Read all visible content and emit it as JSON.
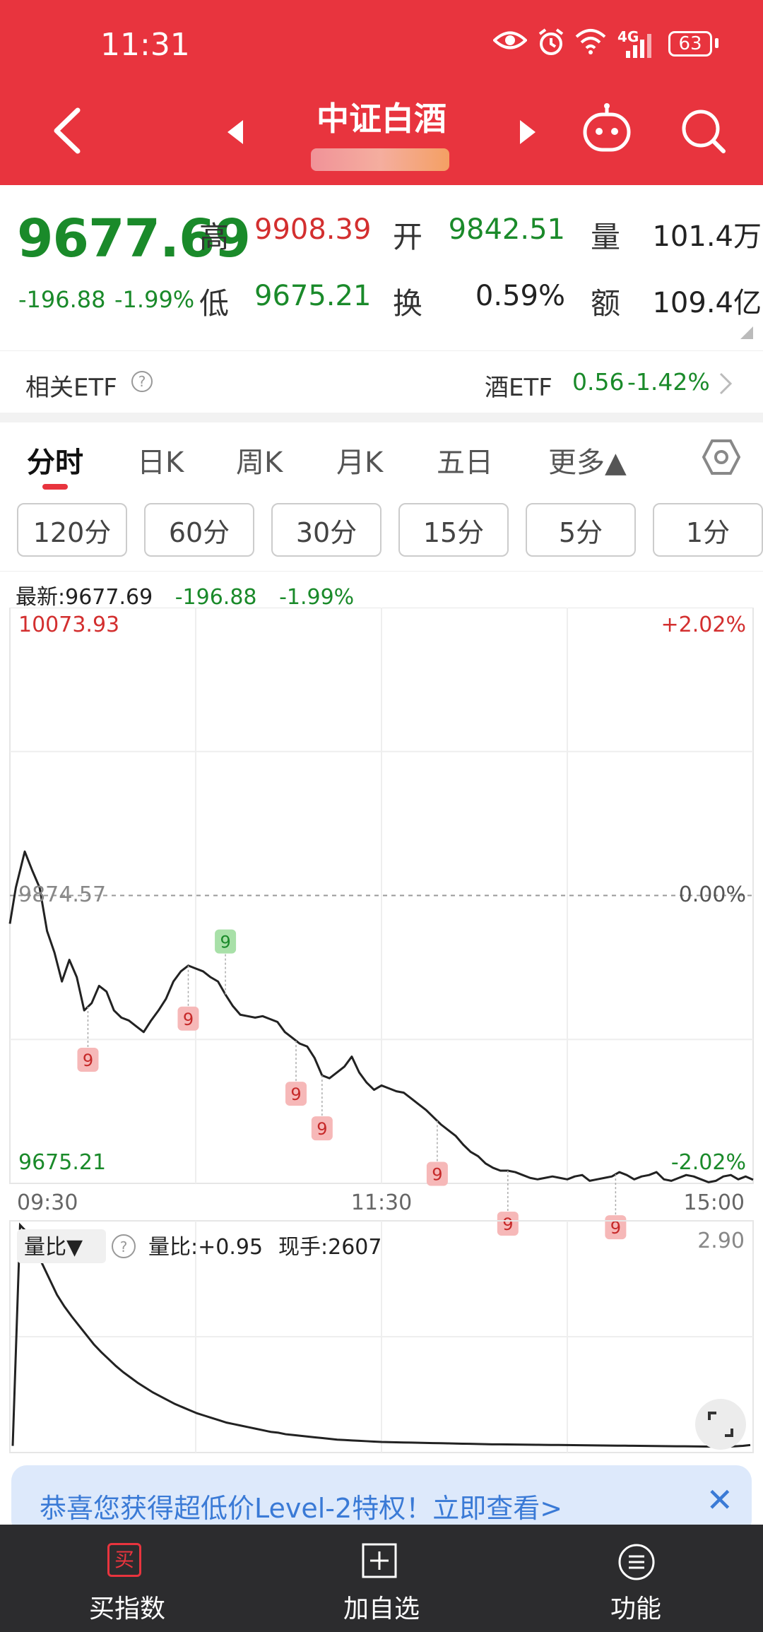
{
  "status_bar": {
    "time": "11:31",
    "battery": "63",
    "network": "4G"
  },
  "header": {
    "title": "中证白酒"
  },
  "quote": {
    "price": "9677.69",
    "change": "-196.88",
    "change_pct": "-1.99%",
    "high_label": "高",
    "high": "9908.39",
    "low_label": "低",
    "low": "9675.21",
    "open_label": "开",
    "open": "9842.51",
    "turnover_label": "换",
    "turnover": "0.59%",
    "volume_label": "量",
    "volume": "101.4万",
    "amount_label": "额",
    "amount": "109.4亿"
  },
  "etf": {
    "label": "相关ETF",
    "name": "酒ETF",
    "price": "0.56",
    "pct": "-1.42%"
  },
  "tabs": [
    {
      "label": "分时",
      "active": true
    },
    {
      "label": "日K"
    },
    {
      "label": "周K"
    },
    {
      "label": "月K"
    },
    {
      "label": "五日"
    },
    {
      "label": "更多▲"
    }
  ],
  "periods": [
    "120分",
    "60分",
    "30分",
    "15分",
    "5分",
    "1分"
  ],
  "latest": {
    "prefix": "最新:9677.69",
    "change": "-196.88",
    "pct": "-1.99%"
  },
  "chart_data": {
    "type": "line",
    "y_max_label": "10073.93",
    "y_min_label": "9675.21",
    "y_mid_label": "9874.57",
    "pct_max_label": "+2.02%",
    "pct_mid_label": "0.00%",
    "pct_min_label": "-2.02%",
    "x_tick_labels": [
      "09:30",
      "11:30",
      "15:00"
    ],
    "ylim": [
      9675.21,
      10073.93
    ],
    "reference": 9874.57,
    "x": [
      0,
      0.008,
      0.02,
      0.03,
      0.04,
      0.05,
      0.06,
      0.07,
      0.08,
      0.09,
      0.1,
      0.11,
      0.12,
      0.13,
      0.14,
      0.15,
      0.16,
      0.17,
      0.18,
      0.19,
      0.2,
      0.21,
      0.22,
      0.23,
      0.24,
      0.25,
      0.26,
      0.27,
      0.28,
      0.29,
      0.3,
      0.31,
      0.32,
      0.33,
      0.34,
      0.35,
      0.36,
      0.37,
      0.38,
      0.39,
      0.4,
      0.41,
      0.42,
      0.43,
      0.44,
      0.45,
      0.46,
      0.47,
      0.48,
      0.49,
      0.5,
      0.51,
      0.52,
      0.53,
      0.54,
      0.55,
      0.56,
      0.57,
      0.58,
      0.59,
      0.6,
      0.61,
      0.62,
      0.63,
      0.64,
      0.65,
      0.66,
      0.67,
      0.68,
      0.69,
      0.7,
      0.71,
      0.72,
      0.73,
      0.74,
      0.75,
      0.76,
      0.77,
      0.78,
      0.79,
      0.8,
      0.81,
      0.82,
      0.83,
      0.84,
      0.85,
      0.86,
      0.87,
      0.88,
      0.89,
      0.9,
      0.91,
      0.92,
      0.93,
      0.94,
      0.95,
      0.96,
      0.97,
      0.98,
      0.99,
      1.0
    ],
    "y": [
      9855,
      9880,
      9905,
      9892,
      9880,
      9850,
      9835,
      9815,
      9830,
      9818,
      9795,
      9800,
      9812,
      9808,
      9795,
      9790,
      9788,
      9784,
      9780,
      9788,
      9795,
      9803,
      9815,
      9822,
      9826,
      9824,
      9822,
      9818,
      9815,
      9806,
      9798,
      9792,
      9791,
      9790,
      9791,
      9789,
      9787,
      9780,
      9776,
      9772,
      9770,
      9762,
      9750,
      9748,
      9752,
      9756,
      9763,
      9752,
      9745,
      9740,
      9743,
      9741,
      9739,
      9738,
      9734,
      9730,
      9726,
      9721,
      9716,
      9712,
      9708,
      9702,
      9697,
      9694,
      9689,
      9686,
      9684,
      9684,
      9683,
      9681,
      9679,
      9678,
      9679,
      9680,
      9679,
      9678,
      9680,
      9681,
      9677,
      9678,
      9679,
      9680,
      9683,
      9681,
      9678,
      9680,
      9681,
      9683,
      9678,
      9677,
      9679,
      9681,
      9680,
      9678,
      9676,
      9677,
      9680,
      9681,
      9678,
      9680,
      9677.69
    ],
    "markers": [
      {
        "label": "9",
        "x": 0.105,
        "color": "red"
      },
      {
        "label": "9",
        "x": 0.24,
        "color": "red"
      },
      {
        "label": "9",
        "x": 0.29,
        "color": "green"
      },
      {
        "label": "9",
        "x": 0.385,
        "color": "red"
      },
      {
        "label": "9",
        "x": 0.42,
        "color": "red"
      },
      {
        "label": "9",
        "x": 0.575,
        "color": "red"
      },
      {
        "label": "9",
        "x": 0.67,
        "color": "red"
      },
      {
        "label": "9",
        "x": 0.815,
        "color": "red"
      }
    ],
    "volume_ratio": {
      "label": "量比▼",
      "value_text": "量比:+0.95",
      "hand_text": "现手:2607",
      "max_label": "2.90",
      "ylim": [
        0,
        2.9
      ],
      "values": [
        0.05,
        2.9,
        2.8,
        2.6,
        2.4,
        2.2,
        2.0,
        1.85,
        1.72,
        1.6,
        1.48,
        1.36,
        1.26,
        1.17,
        1.08,
        1.0,
        0.93,
        0.86,
        0.8,
        0.74,
        0.69,
        0.64,
        0.59,
        0.55,
        0.51,
        0.47,
        0.44,
        0.41,
        0.38,
        0.35,
        0.33,
        0.31,
        0.29,
        0.27,
        0.25,
        0.23,
        0.22,
        0.2,
        0.19,
        0.18,
        0.17,
        0.16,
        0.15,
        0.14,
        0.13,
        0.125,
        0.12,
        0.115,
        0.11,
        0.105,
        0.1,
        0.098,
        0.096,
        0.094,
        0.092,
        0.09,
        0.088,
        0.086,
        0.084,
        0.082,
        0.08,
        0.078,
        0.076,
        0.074,
        0.072,
        0.07,
        0.069,
        0.068,
        0.067,
        0.066,
        0.065,
        0.064,
        0.063,
        0.062,
        0.061,
        0.06,
        0.059,
        0.058,
        0.057,
        0.056,
        0.055,
        0.054,
        0.053,
        0.052,
        0.051,
        0.05,
        0.049,
        0.048,
        0.047,
        0.046,
        0.045,
        0.044,
        0.043,
        0.042,
        0.041,
        0.04,
        0.04,
        0.04,
        0.045,
        0.05,
        0.06
      ]
    }
  },
  "banner": {
    "text": "恭喜您获得超低价Level-2特权！立即查看>",
    "close": "✕"
  },
  "bottom_nav": [
    {
      "label": "买指数",
      "icon": "buy-icon",
      "icon_text": "买"
    },
    {
      "label": "加自选",
      "icon": "add-icon"
    },
    {
      "label": "功能",
      "icon": "menu-icon"
    }
  ]
}
